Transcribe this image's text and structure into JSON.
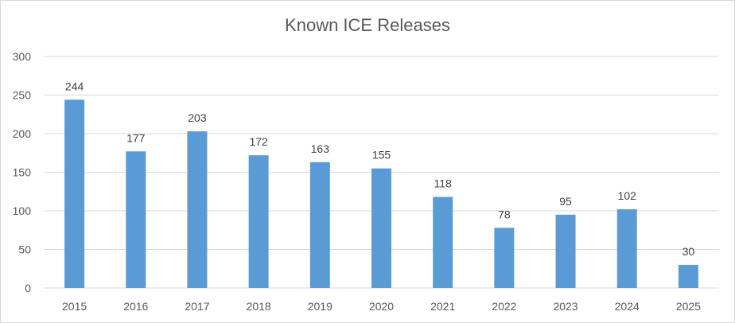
{
  "chart_data": {
    "type": "bar",
    "title": "Known ICE Releases",
    "xlabel": "",
    "ylabel": "",
    "categories": [
      "2015",
      "2016",
      "2017",
      "2018",
      "2019",
      "2020",
      "2021",
      "2022",
      "2023",
      "2024",
      "2025"
    ],
    "values": [
      244,
      177,
      203,
      172,
      163,
      155,
      118,
      78,
      95,
      102,
      30
    ],
    "ylim": [
      0,
      300
    ],
    "yticks": [
      0,
      50,
      100,
      150,
      200,
      250,
      300
    ],
    "grid": true,
    "legend": "none",
    "bar_color": "#5b9bd5",
    "grid_color": "#d9d9d9",
    "data_labels": true
  }
}
